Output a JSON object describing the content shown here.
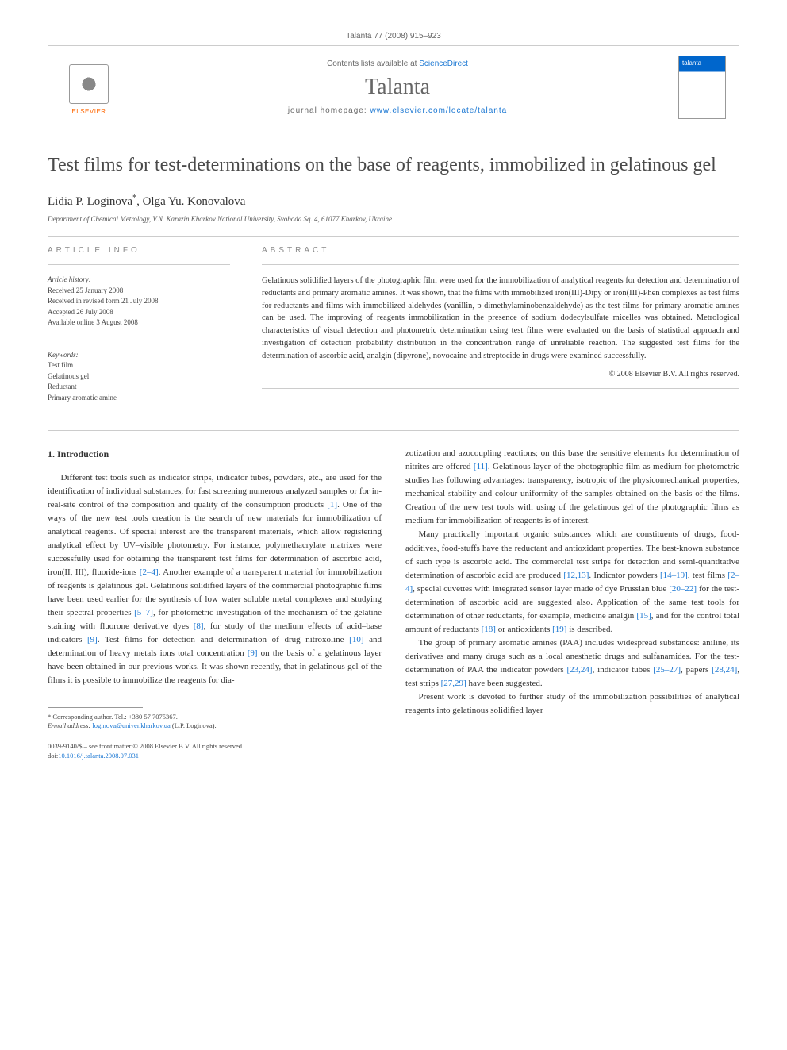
{
  "running_head": "Talanta 77 (2008) 915–923",
  "header": {
    "contents_prefix": "Contents lists available at ",
    "contents_link": "ScienceDirect",
    "journal_name": "Talanta",
    "homepage_prefix": "journal homepage: ",
    "homepage_url": "www.elsevier.com/locate/talanta",
    "publisher": "ELSEVIER",
    "cover_label": "talanta"
  },
  "title": "Test films for test-determinations on the base of reagents, immobilized in gelatinous gel",
  "authors": {
    "a1_name": "Lidia P. Loginova",
    "a1_marker": "*",
    "sep": ", ",
    "a2_name": "Olga Yu. Konovalova"
  },
  "affiliation": "Department of Chemical Metrology, V.N. Karazin Kharkov National University, Svoboda Sq. 4, 61077 Kharkov, Ukraine",
  "info": {
    "heading": "ARTICLE INFO",
    "history_label": "Article history:",
    "received": "Received 25 January 2008",
    "revised": "Received in revised form 21 July 2008",
    "accepted": "Accepted 26 July 2008",
    "online": "Available online 3 August 2008",
    "keywords_label": "Keywords:",
    "kw1": "Test film",
    "kw2": "Gelatinous gel",
    "kw3": "Reductant",
    "kw4": "Primary aromatic amine"
  },
  "abstract": {
    "heading": "ABSTRACT",
    "text": "Gelatinous solidified layers of the photographic film were used for the immobilization of analytical reagents for detection and determination of reductants and primary aromatic amines. It was shown, that the films with immobilized iron(III)-Dipy or iron(III)-Phen complexes as test films for reductants and films with immobilized aldehydes (vanillin, p-dimethylaminobenzaldehyde) as the test films for primary aromatic amines can be used. The improving of reagents immobilization in the presence of sodium dodecylsulfate micelles was obtained. Metrological characteristics of visual detection and photometric determination using test films were evaluated on the basis of statistical approach and investigation of detection probability distribution in the concentration range of unreliable reaction. The suggested test films for the determination of ascorbic acid, analgin (dipyrone), novocaine and streptocide in drugs were examined successfully.",
    "copyright": "© 2008 Elsevier B.V. All rights reserved."
  },
  "section1": {
    "heading": "1.  Introduction",
    "p1a": "Different test tools such as indicator strips, indicator tubes, powders, etc., are used for the identification of individual substances, for fast screening numerous analyzed samples or for in-real-site control of the composition and quality of the consumption products ",
    "p1_ref1": "[1]",
    "p1b": ". One of the ways of the new test tools creation is the search of new materials for immobilization of analytical reagents. Of special interest are the transparent materials, which allow registering analytical effect by UV–visible photometry. For instance, polymethacrylate matrixes were successfully used for obtaining the transparent test films for determination of ascorbic acid, iron(II, III), fluoride-ions ",
    "p1_ref2": "[2–4]",
    "p1c": ". Another example of a transparent material for immobilization of reagents is gelatinous gel. Gelatinous solidified layers of the commercial photographic films have been used earlier for the synthesis of low water soluble metal complexes and studying their spectral properties ",
    "p1_ref3": "[5–7]",
    "p1d": ", for photometric investigation of the mechanism of the gelatine staining with fluorone derivative dyes ",
    "p1_ref4": "[8]",
    "p1e": ", for study of the medium effects of acid–base indicators ",
    "p1_ref5": "[9]",
    "p1f": ". Test films for detection and determination of drug nitroxoline ",
    "p1_ref6": "[10]",
    "p1g": " and determination of heavy metals ions total concentration ",
    "p1_ref7": "[9]",
    "p1h": " on the basis of a gelatinous layer have been obtained in our previous works. It was shown recently, that in gelatinous gel of the films it is possible to immobilize the reagents for dia-",
    "p2a": "zotization and azocoupling reactions; on this base the sensitive elements for determination of nitrites are offered ",
    "p2_ref1": "[11]",
    "p2b": ". Gelatinous layer of the photographic film as medium for photometric studies has following advantages: transparency, isotropic of the physicomechanical properties, mechanical stability and colour uniformity of the samples obtained on the basis of the films. Creation of the new test tools with using of the gelatinous gel of the photographic films as medium for immobilization of reagents is of interest.",
    "p3a": "Many practically important organic substances which are constituents of drugs, food-additives, food-stuffs have the reductant and antioxidant properties. The best-known substance of such type is ascorbic acid. The commercial test strips for detection and semi-quantitative determination of ascorbic acid are produced ",
    "p3_ref1": "[12,13]",
    "p3b": ". Indicator powders ",
    "p3_ref2": "[14–19]",
    "p3c": ", test films ",
    "p3_ref3": "[2–4]",
    "p3d": ", special cuvettes with integrated sensor layer made of dye Prussian blue ",
    "p3_ref4": "[20–22]",
    "p3e": " for the test-determination of ascorbic acid are suggested also. Application of the same test tools for determination of other reductants, for example, medicine analgin ",
    "p3_ref5": "[15]",
    "p3f": ", and for the control total amount of reductants ",
    "p3_ref6": "[18]",
    "p3g": " or antioxidants ",
    "p3_ref7": "[19]",
    "p3h": " is described.",
    "p4a": "The group of primary aromatic amines (PAA) includes widespread substances: aniline, its derivatives and many drugs such as a local anesthetic drugs and sulfanamides. For the test-determination of PAA the indicator powders ",
    "p4_ref1": "[23,24]",
    "p4b": ", indicator tubes ",
    "p4_ref2": "[25–27]",
    "p4c": ", papers ",
    "p4_ref3": "[28,24]",
    "p4d": ", test strips ",
    "p4_ref4": "[27,29]",
    "p4e": " have been suggested.",
    "p5": "Present work is devoted to further study of the immobilization possibilities of analytical reagents into gelatinous solidified layer"
  },
  "footnote": {
    "corr_label": "* Corresponding author. Tel.: ",
    "phone": "+380 57 7075367.",
    "email_label": "E-mail address: ",
    "email": "loginova@univer.kharkov.ua",
    "email_suffix": " (L.P. Loginova)."
  },
  "footer": {
    "issn": "0039-9140/$ – see front matter © 2008 Elsevier B.V. All rights reserved.",
    "doi_label": "doi:",
    "doi": "10.1016/j.talanta.2008.07.031"
  },
  "colors": {
    "link": "#1976d2",
    "text": "#333333",
    "muted": "#666666",
    "border": "#cccccc",
    "elsevier_orange": "#ff6600",
    "cover_blue": "#0066cc"
  }
}
